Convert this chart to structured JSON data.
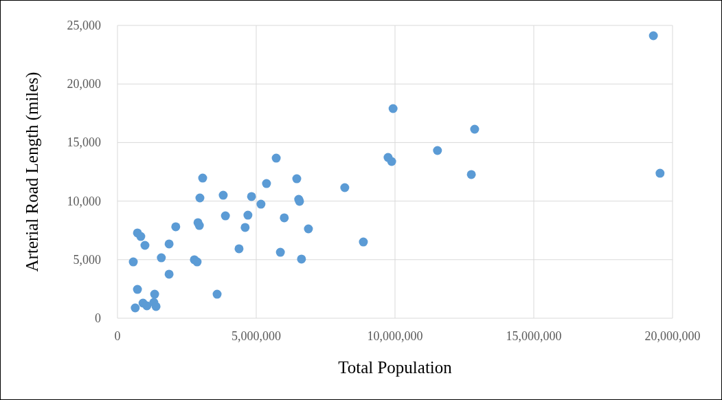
{
  "chart_data": {
    "type": "scatter",
    "xlabel": "Total Population",
    "ylabel": "Arterial Road Length (miles)",
    "xlim": [
      0,
      20000000
    ],
    "xticks": [
      {
        "value": 0,
        "label": "0"
      },
      {
        "value": 5000000,
        "label": "5,000,000"
      },
      {
        "value": 10000000,
        "label": "10,000,000"
      },
      {
        "value": 15000000,
        "label": "15,000,000"
      },
      {
        "value": 20000000,
        "label": "20,000,000"
      }
    ],
    "ylim": [
      0,
      25000
    ],
    "yticks": [
      {
        "value": 0,
        "label": "0"
      },
      {
        "value": 5000,
        "label": "5,000"
      },
      {
        "value": 10000,
        "label": "10,000"
      },
      {
        "value": 15000,
        "label": "15,000"
      },
      {
        "value": 20000,
        "label": "20,000"
      },
      {
        "value": 25000,
        "label": "25,000"
      }
    ],
    "grid": true,
    "marker": "circle",
    "series": [
      {
        "color": "#5b9bd5",
        "x": [
          19310000,
          9930000,
          12870000,
          11530000,
          9750000,
          9880000,
          12750000,
          19550000,
          5720000,
          3070000,
          6460000,
          5370000,
          8190000,
          3810000,
          4830000,
          2970000,
          6530000,
          6560000,
          5170000,
          3890000,
          4700000,
          6010000,
          2900000,
          2950000,
          2100000,
          4600000,
          6880000,
          720000,
          840000,
          990000,
          1860000,
          8860000,
          4380000,
          5870000,
          1580000,
          6630000,
          2770000,
          2870000,
          570000,
          1860000,
          3590000,
          720000,
          1340000,
          920000,
          1310000,
          1060000,
          1390000,
          640000
        ],
        "values": [
          24120,
          17900,
          16140,
          14320,
          13730,
          13380,
          12270,
          12380,
          13670,
          11970,
          11910,
          11500,
          11150,
          10500,
          10390,
          10270,
          10150,
          9980,
          9740,
          8740,
          8800,
          8570,
          8160,
          7920,
          7810,
          7750,
          7630,
          7280,
          6980,
          6220,
          6340,
          6510,
          5930,
          5630,
          5160,
          5050,
          4990,
          4810,
          4810,
          3760,
          2050,
          2460,
          2050,
          1290,
          1350,
          1060,
          1000,
          880
        ]
      }
    ]
  }
}
